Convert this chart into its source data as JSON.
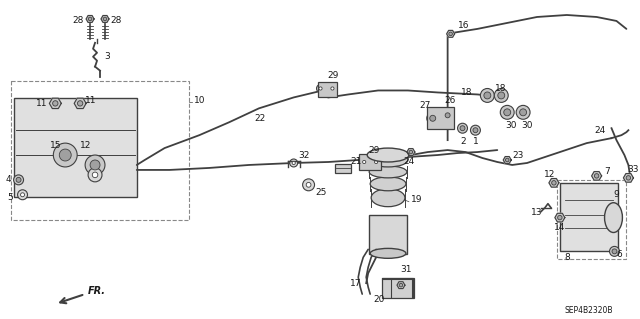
{
  "background_color": "#ffffff",
  "line_color": "#404040",
  "text_color": "#1a1a1a",
  "fig_width": 6.4,
  "fig_height": 3.19,
  "dpi": 100,
  "diagram_code": "SEP4B2320B"
}
